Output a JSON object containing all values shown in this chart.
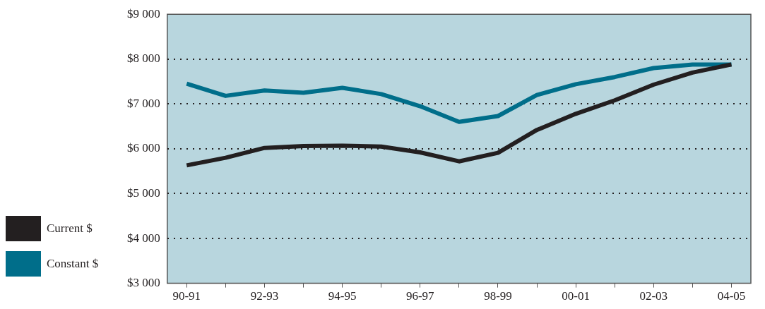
{
  "chart_data": {
    "type": "line",
    "categories": [
      "90-91",
      null,
      "92-93",
      null,
      "94-95",
      null,
      "96-97",
      null,
      "98-99",
      null,
      "00-01",
      null,
      "02-03",
      null,
      "04-05"
    ],
    "series": [
      {
        "name": "Current $",
        "color": "#231f20",
        "values": [
          5630,
          5800,
          6020,
          6060,
          6070,
          6050,
          5920,
          5720,
          5910,
          6420,
          6780,
          7080,
          7430,
          7700,
          7880
        ]
      },
      {
        "name": "Constant $",
        "color": "#006e8a",
        "values": [
          7450,
          7180,
          7300,
          7250,
          7360,
          7220,
          6950,
          6600,
          6730,
          7200,
          7440,
          7600,
          7800,
          7880,
          7880
        ]
      }
    ],
    "ylim": [
      3000,
      9000
    ],
    "yticks": [
      {
        "value": 3000,
        "label": "$3 000"
      },
      {
        "value": 4000,
        "label": "$4 000"
      },
      {
        "value": 5000,
        "label": "$5 000"
      },
      {
        "value": 6000,
        "label": "$6 000"
      },
      {
        "value": 7000,
        "label": "$7 000"
      },
      {
        "value": 8000,
        "label": "$8 000"
      },
      {
        "value": 9000,
        "label": "$9 000"
      }
    ],
    "grid": "y",
    "legend": "left",
    "marker": "none",
    "line_style": "solid"
  }
}
